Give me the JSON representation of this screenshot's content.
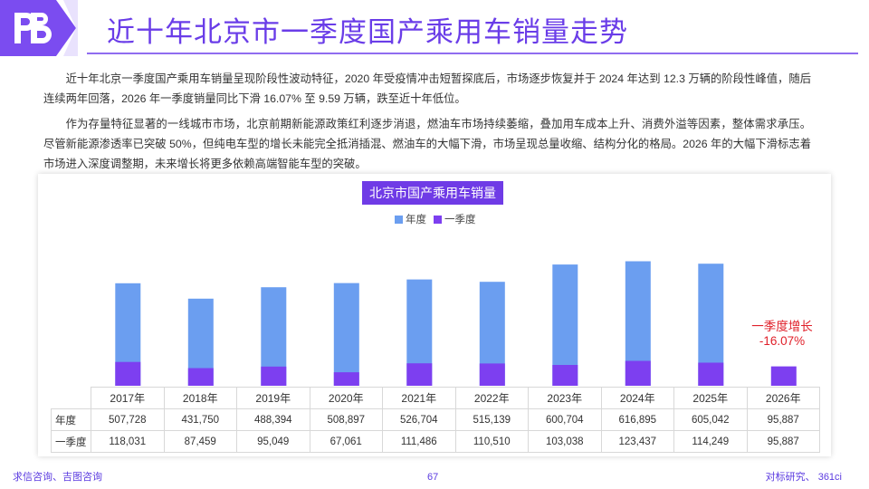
{
  "header": {
    "title": "近十年北京市一季度国产乘用车销量走势"
  },
  "paragraphs": [
    "近十年北京一季度国产乘用车销量呈现阶段性波动特征，2020 年受疫情冲击短暂探底后，市场逐步恢复并于 2024 年达到 12.3 万辆的阶段性峰值，随后连续两年回落，2026 年一季度销量同比下滑 16.07% 至 9.59 万辆，跌至近十年低位。",
    "作为存量特征显著的一线城市市场，北京前期新能源政策红利逐步消退，燃油车市场持续萎缩，叠加用车成本上升、消费外溢等因素，整体需求承压。尽管新能源渗透率已突破 50%，但纯电车型的增长未能完全抵消插混、燃油车的大幅下滑，市场呈现总量收缩、结构分化的格局。2026 年的大幅下滑标志着市场进入深度调整期，未来增长将更多依赖高端智能车型的突破。"
  ],
  "chart_data": {
    "type": "bar",
    "title": "北京市国产乘用车销量",
    "categories": [
      "2017年",
      "2018年",
      "2019年",
      "2020年",
      "2021年",
      "2022年",
      "2023年",
      "2024年",
      "2025年",
      "2026年"
    ],
    "series": [
      {
        "name": "年度",
        "color": "#6b9ef0",
        "values": [
          507728,
          431750,
          488394,
          508897,
          526704,
          515139,
          600704,
          616895,
          605042,
          95887
        ]
      },
      {
        "name": "一季度",
        "color": "#7d3ff0",
        "values": [
          118031,
          87459,
          95049,
          67061,
          111486,
          110510,
          103038,
          123437,
          114249,
          95887
        ]
      }
    ],
    "table_rows": [
      {
        "label": "年度",
        "cells": [
          "507,728",
          "431,750",
          "488,394",
          "508,897",
          "526,704",
          "515,139",
          "600,704",
          "616,895",
          "605,042",
          "95,887"
        ]
      },
      {
        "label": "一季度",
        "cells": [
          "118,031",
          "87,459",
          "95,049",
          "67,061",
          "111,486",
          "110,510",
          "103,038",
          "123,437",
          "114,249",
          "95,887"
        ]
      }
    ],
    "annotation": {
      "line1": "一季度增长",
      "line2": "-16.07%",
      "color": "#e0202a"
    },
    "ylim": [
      0,
      700000
    ],
    "grid": false,
    "legend_position": "top-center"
  },
  "footer": {
    "left": "求信咨询、吉图咨询",
    "page": "67",
    "right": "对标研究、 361ci"
  },
  "colors": {
    "accent": "#6a3de8",
    "annual_bar": "#6b9ef0",
    "q1_bar": "#7d3ff0",
    "annotation": "#e0202a"
  }
}
